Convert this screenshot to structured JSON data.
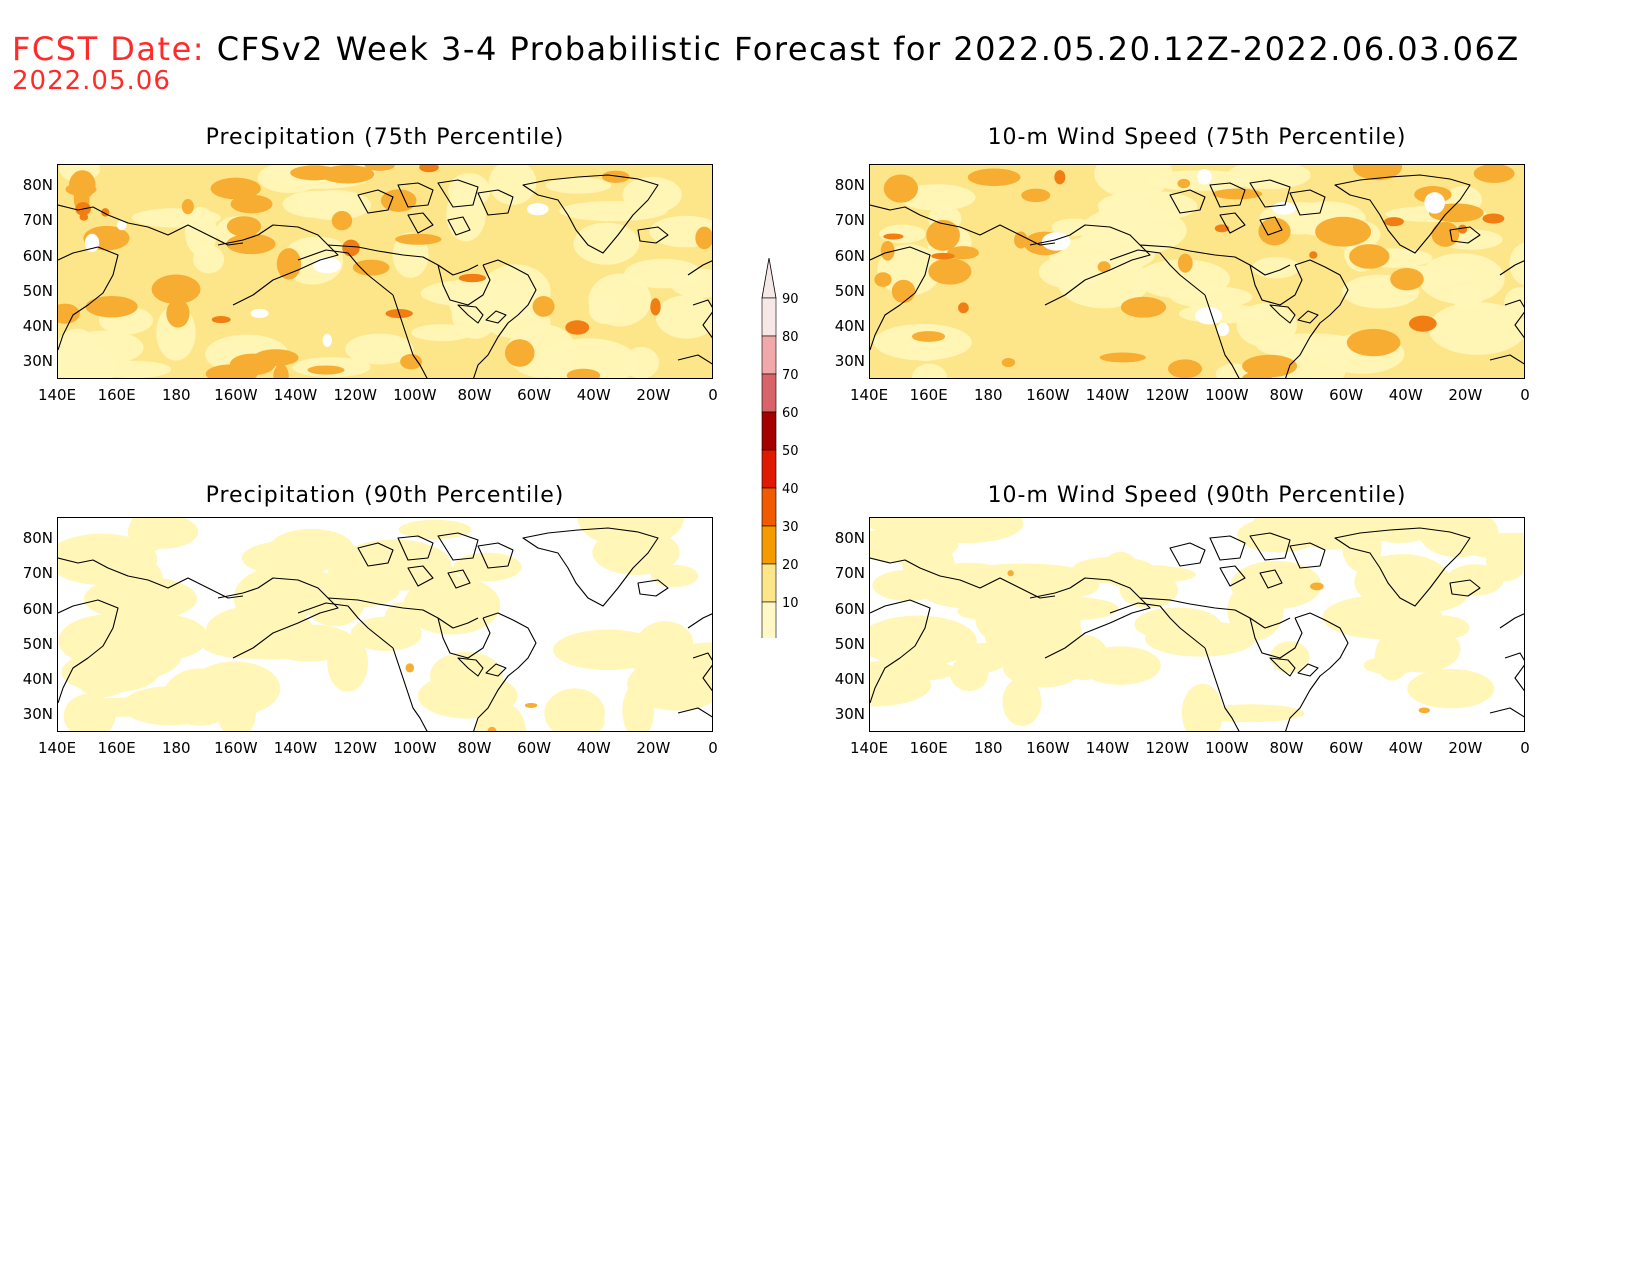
{
  "header": {
    "label": "FCST Date:",
    "title": "CFSv2 Week 3-4 Probabilistic Forecast for 2022.05.20.12Z-2022.06.03.06Z",
    "date": "2022.05.06"
  },
  "panels": [
    {
      "id": "precip-75",
      "title": "Precipitation (75th Percentile)",
      "intensity": "high"
    },
    {
      "id": "wind-75",
      "title": "10-m Wind Speed (75th Percentile)",
      "intensity": "high"
    },
    {
      "id": "precip-90",
      "title": "Precipitation (90th Percentile)",
      "intensity": "low"
    },
    {
      "id": "wind-90",
      "title": "10-m Wind Speed (90th Percentile)",
      "intensity": "low"
    }
  ],
  "axes": {
    "lat_labels": [
      "80N",
      "70N",
      "60N",
      "50N",
      "40N",
      "30N"
    ],
    "lon_labels": [
      "140E",
      "160E",
      "180",
      "160W",
      "140W",
      "120W",
      "100W",
      "80W",
      "60W",
      "40W",
      "20W",
      "0"
    ]
  },
  "colorbar": {
    "levels": [
      "90",
      "80",
      "70",
      "60",
      "50",
      "40",
      "30",
      "20",
      "10"
    ],
    "colors": [
      "#f7e8e8",
      "#f1a8aa",
      "#d8646a",
      "#a50000",
      "#e01a00",
      "#f05a00",
      "#f59a00",
      "#fde68a",
      "#fff9c8"
    ]
  },
  "palette": {
    "white": "#ffffff",
    "light_yellow": "#fff6b8",
    "yellow": "#fde68a",
    "orange": "#f7ad32",
    "dark_orange": "#f07e12",
    "red": "#e02a00",
    "title_red": "#ff2a2a"
  }
}
